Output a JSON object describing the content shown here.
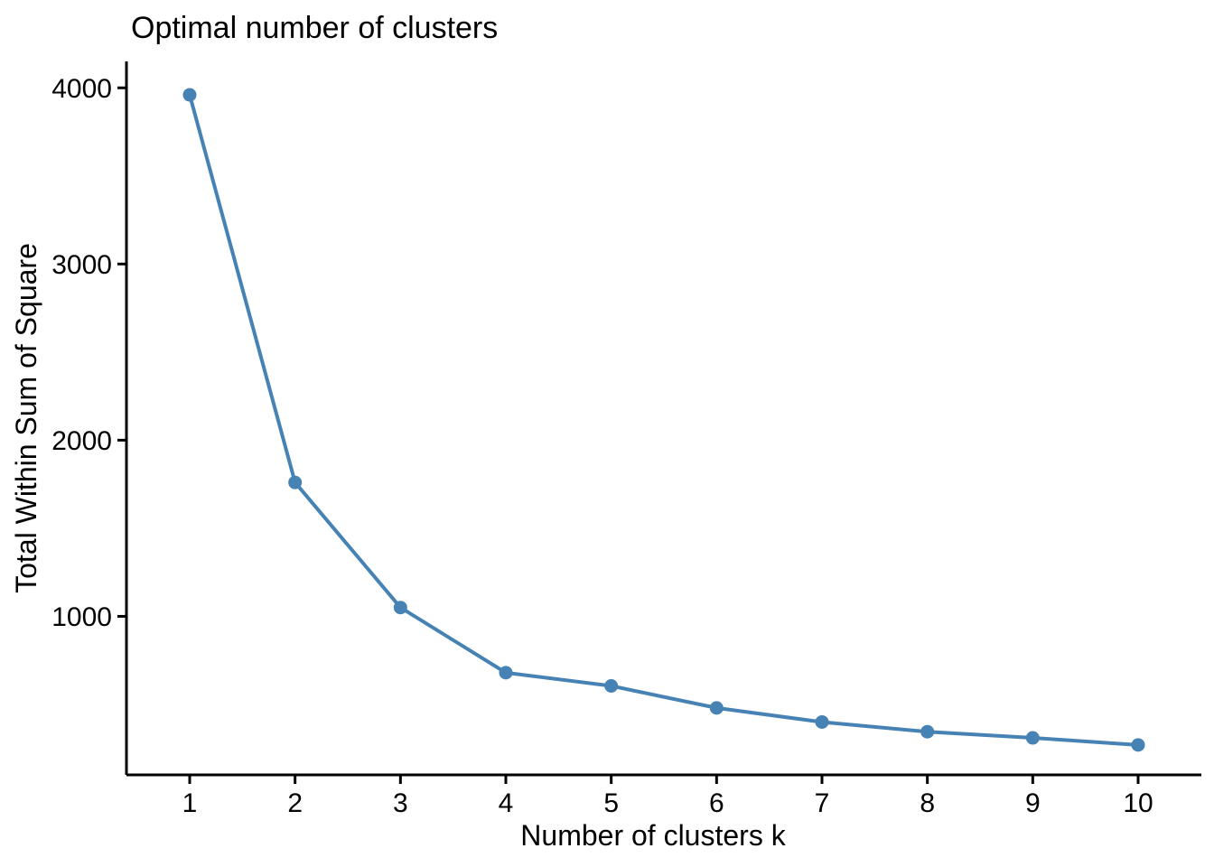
{
  "chart_data": {
    "type": "line",
    "title": "Optimal number of clusters",
    "xlabel": "Number of clusters k",
    "ylabel": "Total Within Sum of Square",
    "x": [
      1,
      2,
      3,
      4,
      5,
      6,
      7,
      8,
      9,
      10
    ],
    "values": [
      3960,
      1760,
      1050,
      680,
      605,
      480,
      400,
      345,
      310,
      270
    ],
    "xticks": [
      "1",
      "2",
      "3",
      "4",
      "5",
      "6",
      "7",
      "8",
      "9",
      "10"
    ],
    "yticks": [
      "1000",
      "2000",
      "3000",
      "4000"
    ],
    "ytick_values": [
      1000,
      2000,
      3000,
      4000
    ],
    "xlim": [
      0.4,
      10.6
    ],
    "ylim": [
      100,
      4150
    ],
    "grid": "off",
    "legend": "none",
    "line_color": "#4682B4",
    "point_color": "#4682B4",
    "axis_color": "#000000",
    "text_color": "#000000",
    "background_color": "#FFFFFF"
  }
}
